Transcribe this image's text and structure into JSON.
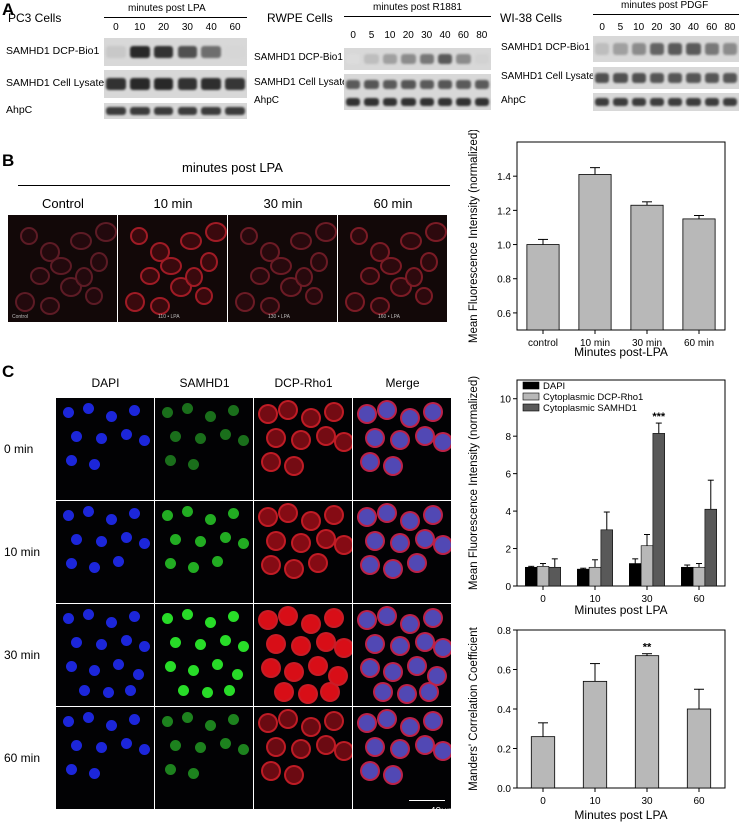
{
  "panelA": {
    "letter": "A",
    "blots": [
      {
        "cell_line": "PC3 Cells",
        "header": "minutes post LPA",
        "lanes": [
          "0",
          "10",
          "20",
          "30",
          "40",
          "60"
        ],
        "rows": [
          "SAMHD1 DCP-Bio1",
          "SAMHD1 Cell Lysate",
          "AhpC"
        ],
        "intensity": [
          [
            0.15,
            0.95,
            0.9,
            0.75,
            0.6,
            0.08
          ],
          [
            0.9,
            0.95,
            0.95,
            0.9,
            0.92,
            0.88
          ],
          [
            0.85,
            0.85,
            0.85,
            0.85,
            0.85,
            0.85
          ]
        ]
      },
      {
        "cell_line": "RWPE Cells",
        "header": "minutes post R1881",
        "lanes": [
          "0",
          "5",
          "10",
          "20",
          "30",
          "40",
          "60",
          "80"
        ],
        "rows": [
          "SAMHD1 DCP-Bio1",
          "SAMHD1 Cell Lysate",
          "AhpC"
        ],
        "intensity": [
          [
            0.05,
            0.2,
            0.35,
            0.45,
            0.55,
            0.7,
            0.45,
            0.1
          ],
          [
            0.7,
            0.72,
            0.7,
            0.72,
            0.7,
            0.72,
            0.7,
            0.7
          ],
          [
            0.9,
            0.9,
            0.9,
            0.9,
            0.9,
            0.9,
            0.9,
            0.9
          ]
        ]
      },
      {
        "cell_line": "WI-38 Cells",
        "header": "minutes post PDGF",
        "lanes": [
          "0",
          "5",
          "10",
          "20",
          "30",
          "40",
          "60",
          "80"
        ],
        "rows": [
          "SAMHD1 DCP-Bio1",
          "SAMHD1 Cell Lysate",
          "AhpC"
        ],
        "intensity": [
          [
            0.2,
            0.35,
            0.45,
            0.65,
            0.7,
            0.7,
            0.55,
            0.45
          ],
          [
            0.75,
            0.75,
            0.75,
            0.72,
            0.72,
            0.72,
            0.72,
            0.72
          ],
          [
            0.85,
            0.85,
            0.85,
            0.85,
            0.85,
            0.85,
            0.85,
            0.85
          ]
        ]
      }
    ]
  },
  "panelB": {
    "letter": "B",
    "header": "minutes post LPA",
    "images": [
      {
        "label": "Control",
        "caption": "Control",
        "red": 0.25
      },
      {
        "label": "10 min",
        "caption": "110 • LPA",
        "red": 0.7
      },
      {
        "label": "30 min",
        "caption": "130 • LPA",
        "red": 0.35
      },
      {
        "label": "60 min",
        "caption": "160 • LPA",
        "red": 0.45
      }
    ]
  },
  "panelC": {
    "letter": "C",
    "columns": [
      "DAPI",
      "SAMHD1",
      "DCP-Rho1",
      "Merge"
    ],
    "rows": [
      "0 min",
      "10 min",
      "30 min",
      "60 min"
    ],
    "scale_bar": "40µm"
  },
  "chart_data": [
    {
      "type": "bar",
      "categories": [
        "control",
        "10 min",
        "30 min",
        "60 min"
      ],
      "values": [
        1.0,
        1.41,
        1.23,
        1.15
      ],
      "errors": [
        0.03,
        0.04,
        0.02,
        0.02
      ],
      "xlabel": "Minutes post-LPA",
      "ylabel": "Mean Fluorescence Intensity (normalized)",
      "ylim": [
        0.5,
        1.6
      ],
      "yticks": [
        "0.6",
        "0.8",
        "1.0",
        "1.2",
        "1.4"
      ],
      "grid": false,
      "color": "#b8b8b8"
    },
    {
      "type": "bar",
      "categories": [
        "0",
        "10",
        "30",
        "60"
      ],
      "series": [
        {
          "name": "DAPI",
          "values": [
            1.0,
            0.9,
            1.2,
            1.0
          ],
          "errors": [
            0.05,
            0.05,
            0.25,
            0.12
          ],
          "color": "#000000"
        },
        {
          "name": "Cytoplasmic DCP-Rho1",
          "values": [
            1.05,
            1.0,
            2.15,
            1.0
          ],
          "errors": [
            0.15,
            0.4,
            0.6,
            0.2
          ],
          "color": "#b8b8b8"
        },
        {
          "name": "Cytoplasmic SAMHD1",
          "values": [
            1.0,
            3.0,
            8.15,
            4.1
          ],
          "errors": [
            0.45,
            0.95,
            0.55,
            1.55
          ],
          "color": "#595959"
        }
      ],
      "annotations": [
        {
          "category": "30",
          "series": "Cytoplasmic SAMHD1",
          "text": "***"
        }
      ],
      "xlabel": "Minutes post LPA",
      "ylabel": "Mean Fluorescence Intensity (normalized)",
      "ylim": [
        0,
        11
      ],
      "yticks": [
        "0",
        "2",
        "4",
        "6",
        "8",
        "10"
      ],
      "legend": "top-left",
      "grid": false
    },
    {
      "type": "bar",
      "categories": [
        "0",
        "10",
        "30",
        "60"
      ],
      "values": [
        0.26,
        0.54,
        0.67,
        0.4
      ],
      "errors": [
        0.07,
        0.09,
        0.01,
        0.1
      ],
      "annotations": [
        {
          "category": "30",
          "text": "**"
        }
      ],
      "xlabel": "Minutes post LPA",
      "ylabel": "Manders' Correlation Coefficient",
      "ylim": [
        0,
        0.8
      ],
      "yticks": [
        "0.0",
        "0.2",
        "0.4",
        "0.6",
        "0.8"
      ],
      "grid": false,
      "color": "#b8b8b8"
    }
  ]
}
